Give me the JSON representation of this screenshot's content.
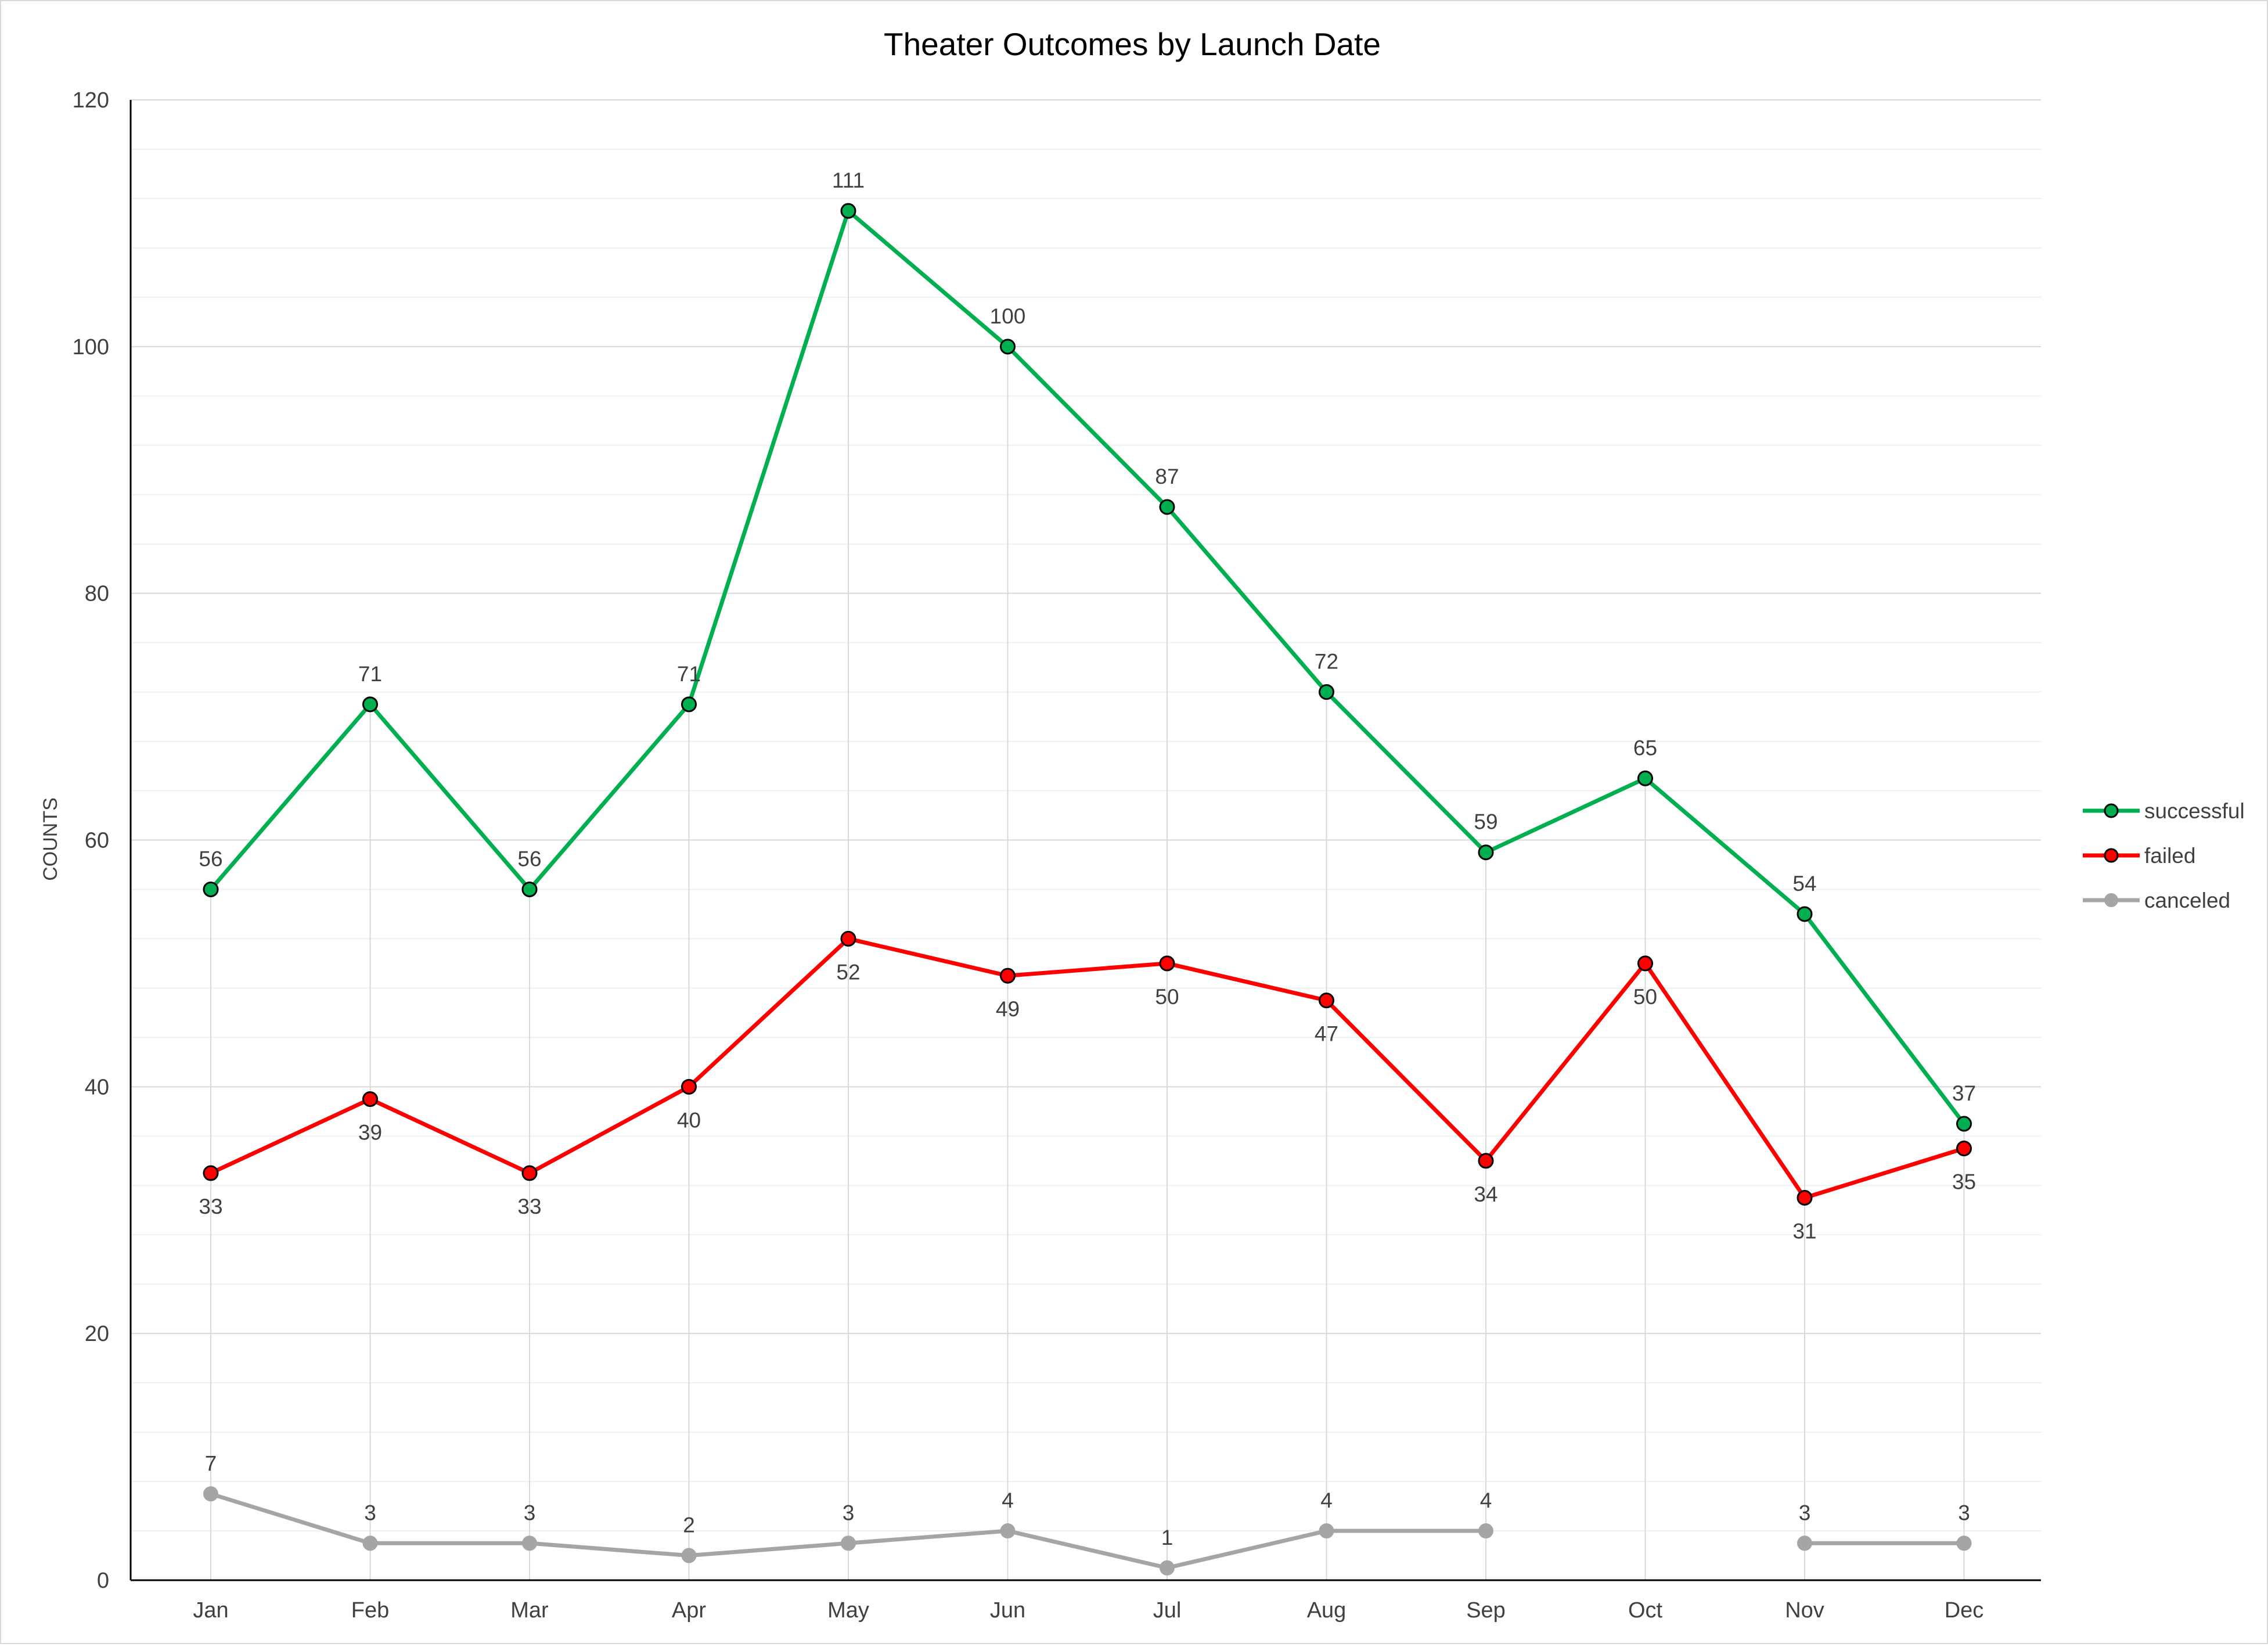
{
  "chart_data": {
    "type": "line",
    "title": "Theater Outcomes by Launch Date",
    "xlabel": "",
    "ylabel": "COUNTS",
    "categories": [
      "Jan",
      "Feb",
      "Mar",
      "Apr",
      "May",
      "Jun",
      "Jul",
      "Aug",
      "Sep",
      "Oct",
      "Nov",
      "Dec"
    ],
    "ylim": [
      0,
      120
    ],
    "yticks": [
      0,
      20,
      40,
      60,
      80,
      100,
      120
    ],
    "grid": true,
    "legend_position": "right",
    "series": [
      {
        "name": "successful",
        "color": "#00b050",
        "label_position": "above",
        "values": [
          56,
          71,
          56,
          71,
          111,
          100,
          87,
          72,
          59,
          65,
          54,
          37
        ]
      },
      {
        "name": "failed",
        "color": "#ff0000",
        "label_position": "below",
        "values": [
          33,
          39,
          33,
          40,
          52,
          49,
          50,
          47,
          34,
          50,
          31,
          35
        ]
      },
      {
        "name": "canceled",
        "color": "#a5a5a5",
        "label_position": "above",
        "values": [
          7,
          3,
          3,
          2,
          3,
          4,
          1,
          4,
          4,
          null,
          3,
          3
        ]
      }
    ]
  }
}
